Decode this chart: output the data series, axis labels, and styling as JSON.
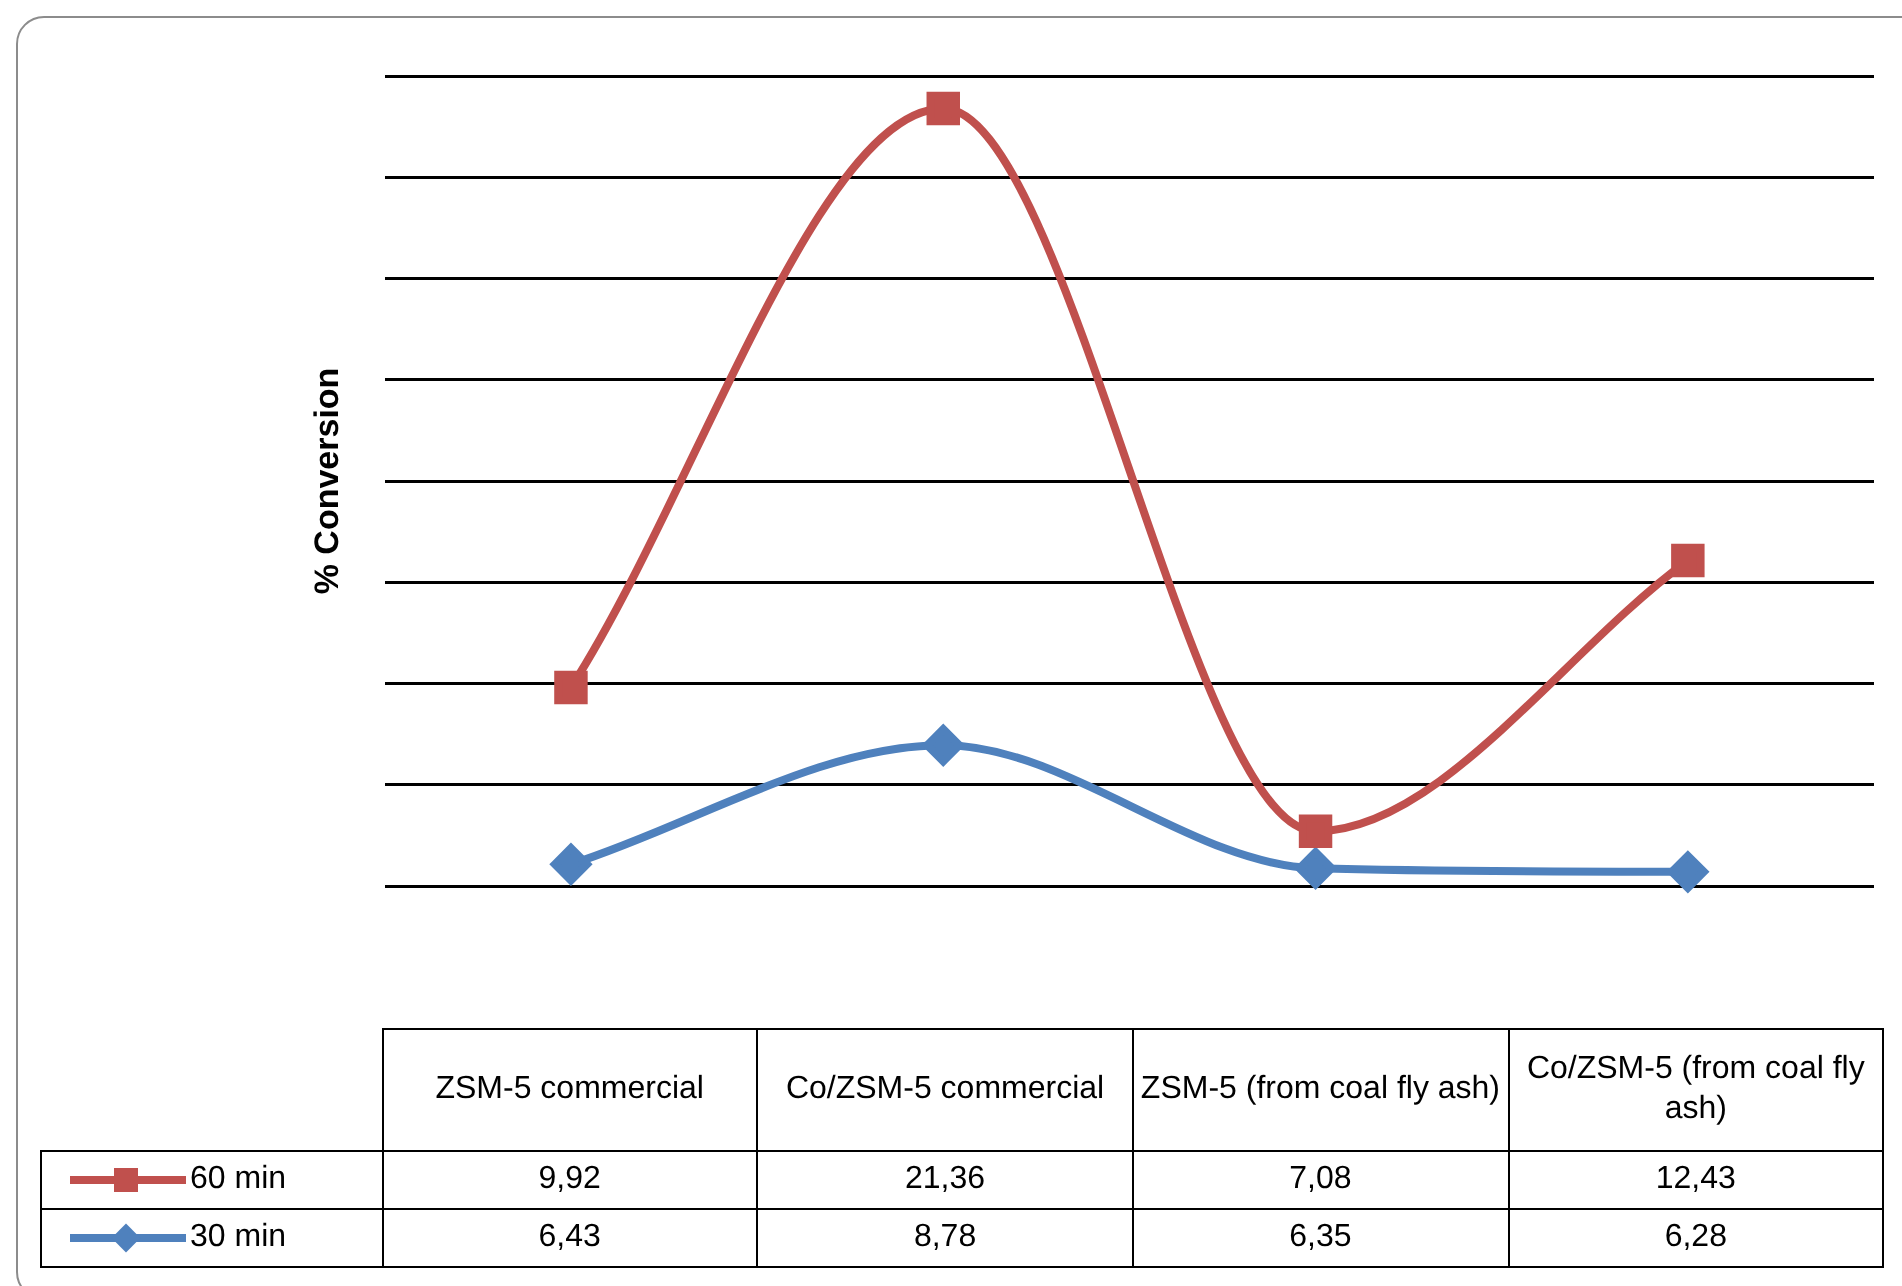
{
  "chart_data": {
    "type": "line",
    "ylabel": "% Conversion",
    "categories": [
      "ZSM-5 commercial",
      "Co/ZSM-5 commercial",
      "ZSM-5 (from coal fly ash)",
      "Co/ZSM-5 (from coal fly ash)"
    ],
    "series": [
      {
        "name": "60 min",
        "color": "#c0504d",
        "marker": "square",
        "values": [
          9.92,
          21.36,
          7.08,
          12.43
        ],
        "value_labels": [
          "9,92",
          "21,36",
          "7,08",
          "12,43"
        ]
      },
      {
        "name": "30 min",
        "color": "#4f81bd",
        "marker": "diamond",
        "values": [
          6.43,
          8.78,
          6.35,
          6.28
        ],
        "value_labels": [
          "6,43",
          "8,78",
          "6,35",
          "6,28"
        ]
      }
    ],
    "grid": "y",
    "legend": "bottom",
    "tick_labels": "x"
  }
}
